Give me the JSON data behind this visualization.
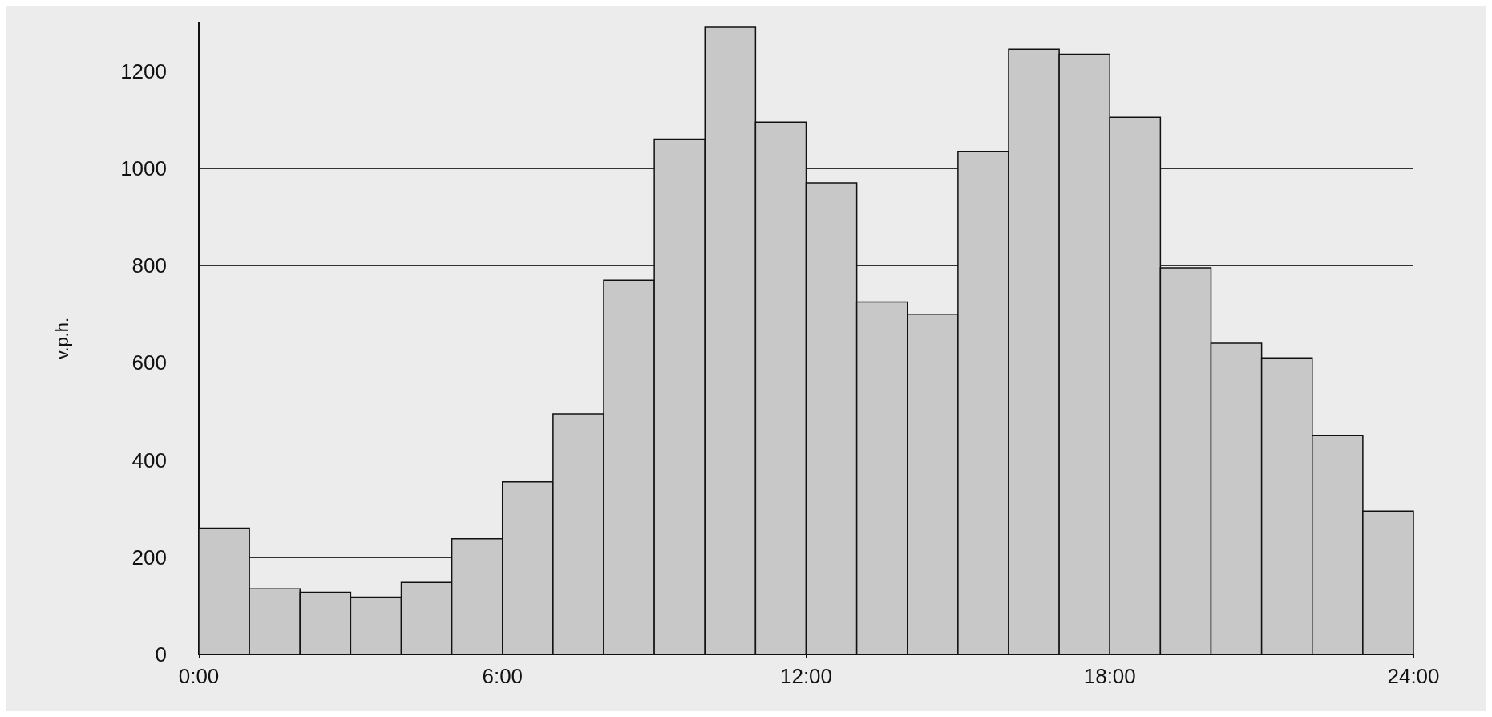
{
  "chart_data": {
    "type": "histogram",
    "ylabel": "v.p.h.",
    "bins": [
      0,
      1,
      2,
      3,
      4,
      5,
      6,
      7,
      8,
      9,
      10,
      11,
      12,
      13,
      14,
      15,
      16,
      17,
      18,
      19,
      20,
      21,
      22,
      23,
      24
    ],
    "values": [
      260,
      135,
      128,
      118,
      148,
      238,
      355,
      495,
      770,
      1060,
      1290,
      1095,
      970,
      725,
      700,
      1035,
      1245,
      1235,
      1105,
      795,
      640,
      610,
      450,
      295
    ],
    "color": "#c8c8c8",
    "xlim": [
      0,
      24
    ],
    "xticks": [
      {
        "value": 0,
        "label": "0:00"
      },
      {
        "value": 6,
        "label": "6:00"
      },
      {
        "value": 12,
        "label": "12:00"
      },
      {
        "value": 18,
        "label": "18:00"
      },
      {
        "value": 24,
        "label": "24:00"
      }
    ],
    "ylim": [
      0,
      1300
    ],
    "yticks": [
      0,
      200,
      400,
      600,
      800,
      1000,
      1200
    ],
    "grid": "y"
  }
}
